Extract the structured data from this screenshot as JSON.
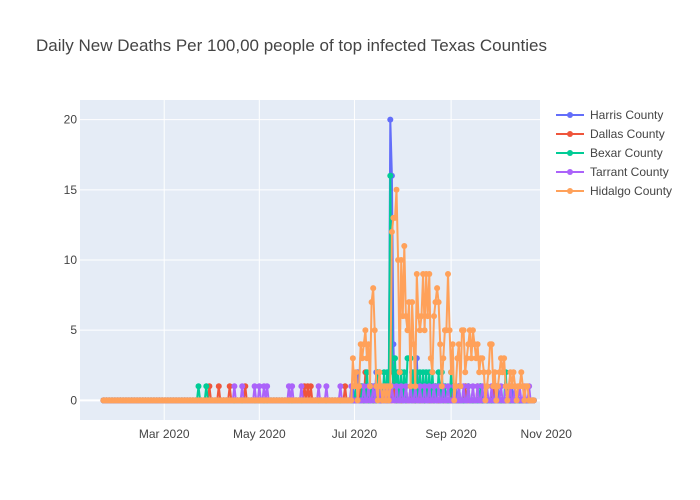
{
  "chart_data": {
    "type": "line",
    "title": "Daily New Deaths Per 100,00 people of top infected Texas Counties",
    "xlabel": "",
    "ylabel": "",
    "x_type": "date",
    "xlim": [
      "2020-01-07",
      "2020-10-28"
    ],
    "ylim": [
      -1.4,
      21.4
    ],
    "x_ticks": [
      {
        "value": "2020-03-01",
        "label": "Mar 2020"
      },
      {
        "value": "2020-05-01",
        "label": "May 2020"
      },
      {
        "value": "2020-07-01",
        "label": "Jul 2020"
      },
      {
        "value": "2020-09-01",
        "label": "Sep 2020"
      },
      {
        "value": "2020-11-01",
        "label": "Nov 2020"
      }
    ],
    "y_ticks": [
      0,
      5,
      10,
      15,
      20
    ],
    "grid": true,
    "legend_position": "top-right",
    "x_range": [
      "2020-01-22",
      "2020-10-24"
    ],
    "series": [
      {
        "name": "Harris County",
        "color": "#636efa",
        "points": [
          [
            "2020-06-30",
            1
          ],
          [
            "2020-07-03",
            2
          ],
          [
            "2020-07-10",
            1
          ],
          [
            "2020-07-15",
            2
          ],
          [
            "2020-07-21",
            1
          ],
          [
            "2020-07-24",
            20
          ],
          [
            "2020-07-25",
            16
          ],
          [
            "2020-07-26",
            4
          ],
          [
            "2020-07-28",
            2
          ],
          [
            "2020-07-30",
            1
          ],
          [
            "2020-08-03",
            1
          ],
          [
            "2020-08-07",
            2
          ],
          [
            "2020-08-10",
            3
          ],
          [
            "2020-08-13",
            1
          ],
          [
            "2020-08-17",
            1
          ],
          [
            "2020-08-21",
            1
          ],
          [
            "2020-08-27",
            1
          ],
          [
            "2020-09-04",
            1
          ],
          [
            "2020-09-12",
            1
          ],
          [
            "2020-09-20",
            1
          ],
          [
            "2020-10-01",
            1
          ],
          [
            "2020-10-10",
            1
          ]
        ]
      },
      {
        "name": "Dallas County",
        "color": "#ef553b",
        "points": [
          [
            "2020-03-30",
            1
          ],
          [
            "2020-04-05",
            1
          ],
          [
            "2020-04-12",
            1
          ],
          [
            "2020-04-22",
            1
          ],
          [
            "2020-05-30",
            1
          ],
          [
            "2020-06-01",
            1
          ],
          [
            "2020-06-03",
            1
          ],
          [
            "2020-06-25",
            1
          ],
          [
            "2020-07-05",
            1
          ],
          [
            "2020-07-08",
            2
          ],
          [
            "2020-07-12",
            1
          ],
          [
            "2020-07-17",
            2
          ],
          [
            "2020-07-20",
            1
          ],
          [
            "2020-07-26",
            2
          ],
          [
            "2020-08-02",
            1
          ],
          [
            "2020-08-06",
            1
          ],
          [
            "2020-08-11",
            1
          ],
          [
            "2020-08-16",
            1
          ],
          [
            "2020-08-22",
            1
          ],
          [
            "2020-08-26",
            1
          ],
          [
            "2020-09-02",
            1
          ],
          [
            "2020-09-10",
            1
          ],
          [
            "2020-09-18",
            1
          ],
          [
            "2020-09-28",
            1
          ]
        ]
      },
      {
        "name": "Bexar County",
        "color": "#00cc96",
        "points": [
          [
            "2020-03-23",
            1
          ],
          [
            "2020-03-28",
            1
          ],
          [
            "2020-07-02",
            1
          ],
          [
            "2020-07-06",
            1
          ],
          [
            "2020-07-09",
            2
          ],
          [
            "2020-07-12",
            1
          ],
          [
            "2020-07-14",
            1
          ],
          [
            "2020-07-16",
            2
          ],
          [
            "2020-07-18",
            1
          ],
          [
            "2020-07-20",
            2
          ],
          [
            "2020-07-22",
            2
          ],
          [
            "2020-07-24",
            16
          ],
          [
            "2020-07-25",
            3
          ],
          [
            "2020-07-26",
            1
          ],
          [
            "2020-07-27",
            3
          ],
          [
            "2020-07-29",
            2
          ],
          [
            "2020-07-31",
            2
          ],
          [
            "2020-08-02",
            2
          ],
          [
            "2020-08-04",
            3
          ],
          [
            "2020-08-05",
            3
          ],
          [
            "2020-08-06",
            3
          ],
          [
            "2020-08-08",
            2
          ],
          [
            "2020-08-10",
            2
          ],
          [
            "2020-08-12",
            2
          ],
          [
            "2020-08-14",
            2
          ],
          [
            "2020-08-16",
            2
          ],
          [
            "2020-08-18",
            2
          ],
          [
            "2020-08-20",
            2
          ],
          [
            "2020-08-22",
            1
          ],
          [
            "2020-08-24",
            2
          ],
          [
            "2020-08-26",
            2
          ],
          [
            "2020-08-28",
            1
          ],
          [
            "2020-09-01",
            2
          ],
          [
            "2020-09-06",
            1
          ],
          [
            "2020-09-12",
            1
          ],
          [
            "2020-09-20",
            1
          ],
          [
            "2020-09-30",
            1
          ],
          [
            "2020-10-06",
            2
          ]
        ]
      },
      {
        "name": "Tarrant County",
        "color": "#ab63fa",
        "points": [
          [
            "2020-04-15",
            1
          ],
          [
            "2020-04-20",
            1
          ],
          [
            "2020-04-28",
            1
          ],
          [
            "2020-05-01",
            1
          ],
          [
            "2020-05-04",
            1
          ],
          [
            "2020-05-06",
            1
          ],
          [
            "2020-05-20",
            1
          ],
          [
            "2020-05-22",
            1
          ],
          [
            "2020-05-28",
            1
          ],
          [
            "2020-06-08",
            1
          ],
          [
            "2020-06-13",
            1
          ],
          [
            "2020-06-22",
            1
          ],
          [
            "2020-06-29",
            1
          ],
          [
            "2020-07-07",
            1
          ],
          [
            "2020-07-10",
            1
          ],
          [
            "2020-07-13",
            1
          ],
          [
            "2020-07-15",
            1
          ],
          [
            "2020-07-18",
            1
          ],
          [
            "2020-07-21",
            1
          ],
          [
            "2020-07-23",
            1
          ],
          [
            "2020-07-25",
            1
          ],
          [
            "2020-07-28",
            1
          ],
          [
            "2020-07-31",
            1
          ],
          [
            "2020-08-03",
            1
          ],
          [
            "2020-08-06",
            1
          ],
          [
            "2020-08-09",
            1
          ],
          [
            "2020-08-12",
            1
          ],
          [
            "2020-08-15",
            1
          ],
          [
            "2020-08-18",
            1
          ],
          [
            "2020-08-21",
            1
          ],
          [
            "2020-08-24",
            1
          ],
          [
            "2020-08-27",
            1
          ],
          [
            "2020-08-30",
            1
          ],
          [
            "2020-09-03",
            1
          ],
          [
            "2020-09-06",
            1
          ],
          [
            "2020-09-09",
            1
          ],
          [
            "2020-09-12",
            1
          ],
          [
            "2020-09-15",
            1
          ],
          [
            "2020-09-18",
            1
          ],
          [
            "2020-09-21",
            1
          ],
          [
            "2020-09-24",
            1
          ],
          [
            "2020-09-27",
            1
          ],
          [
            "2020-09-30",
            1
          ],
          [
            "2020-10-03",
            1
          ],
          [
            "2020-10-06",
            1
          ],
          [
            "2020-10-09",
            1
          ],
          [
            "2020-10-12",
            1
          ],
          [
            "2020-10-15",
            1
          ],
          [
            "2020-10-18",
            1
          ],
          [
            "2020-10-21",
            1
          ]
        ]
      },
      {
        "name": "Hidalgo County",
        "color": "#ffa15a",
        "points": [
          [
            "2020-06-30",
            3
          ],
          [
            "2020-07-01",
            1
          ],
          [
            "2020-07-02",
            2
          ],
          [
            "2020-07-04",
            1
          ],
          [
            "2020-07-05",
            4
          ],
          [
            "2020-07-06",
            3
          ],
          [
            "2020-07-07",
            4
          ],
          [
            "2020-07-08",
            5
          ],
          [
            "2020-07-09",
            3
          ],
          [
            "2020-07-10",
            4
          ],
          [
            "2020-07-11",
            1
          ],
          [
            "2020-07-12",
            7
          ],
          [
            "2020-07-13",
            8
          ],
          [
            "2020-07-14",
            5
          ],
          [
            "2020-07-15",
            1
          ],
          [
            "2020-07-16",
            0
          ],
          [
            "2020-07-17",
            2
          ],
          [
            "2020-07-18",
            1
          ],
          [
            "2020-07-19",
            0
          ],
          [
            "2020-07-20",
            1
          ],
          [
            "2020-07-21",
            0
          ],
          [
            "2020-07-22",
            1
          ],
          [
            "2020-07-23",
            0
          ],
          [
            "2020-07-24",
            1
          ],
          [
            "2020-07-25",
            12
          ],
          [
            "2020-07-26",
            13
          ],
          [
            "2020-07-27",
            13
          ],
          [
            "2020-07-28",
            15
          ],
          [
            "2020-07-29",
            10
          ],
          [
            "2020-07-30",
            2
          ],
          [
            "2020-07-31",
            10
          ],
          [
            "2020-08-01",
            6
          ],
          [
            "2020-08-02",
            11
          ],
          [
            "2020-08-03",
            6
          ],
          [
            "2020-08-04",
            5
          ],
          [
            "2020-08-05",
            7
          ],
          [
            "2020-08-06",
            1
          ],
          [
            "2020-08-07",
            7
          ],
          [
            "2020-08-08",
            4
          ],
          [
            "2020-08-09",
            1
          ],
          [
            "2020-08-10",
            9
          ],
          [
            "2020-08-11",
            6
          ],
          [
            "2020-08-12",
            5
          ],
          [
            "2020-08-13",
            6
          ],
          [
            "2020-08-14",
            9
          ],
          [
            "2020-08-15",
            5
          ],
          [
            "2020-08-16",
            9
          ],
          [
            "2020-08-17",
            6
          ],
          [
            "2020-08-18",
            9
          ],
          [
            "2020-08-19",
            3
          ],
          [
            "2020-08-20",
            2
          ],
          [
            "2020-08-21",
            6
          ],
          [
            "2020-08-22",
            7
          ],
          [
            "2020-08-23",
            8
          ],
          [
            "2020-08-24",
            7
          ],
          [
            "2020-08-25",
            4
          ],
          [
            "2020-08-26",
            1
          ],
          [
            "2020-08-27",
            3
          ],
          [
            "2020-08-28",
            5
          ],
          [
            "2020-08-29",
            5
          ],
          [
            "2020-08-30",
            9
          ],
          [
            "2020-08-31",
            5
          ],
          [
            "2020-09-01",
            2
          ],
          [
            "2020-09-02",
            4
          ],
          [
            "2020-09-03",
            0
          ],
          [
            "2020-09-04",
            1
          ],
          [
            "2020-09-05",
            3
          ],
          [
            "2020-09-06",
            4
          ],
          [
            "2020-09-07",
            1
          ],
          [
            "2020-09-08",
            5
          ],
          [
            "2020-09-09",
            5
          ],
          [
            "2020-09-10",
            2
          ],
          [
            "2020-09-11",
            3
          ],
          [
            "2020-09-12",
            4
          ],
          [
            "2020-09-13",
            5
          ],
          [
            "2020-09-14",
            3
          ],
          [
            "2020-09-15",
            5
          ],
          [
            "2020-09-16",
            4
          ],
          [
            "2020-09-17",
            3
          ],
          [
            "2020-09-18",
            4
          ],
          [
            "2020-09-19",
            2
          ],
          [
            "2020-09-20",
            3
          ],
          [
            "2020-09-21",
            3
          ],
          [
            "2020-09-22",
            2
          ],
          [
            "2020-09-23",
            0
          ],
          [
            "2020-09-24",
            1
          ],
          [
            "2020-09-25",
            2
          ],
          [
            "2020-09-26",
            4
          ],
          [
            "2020-09-27",
            4
          ],
          [
            "2020-09-28",
            1
          ],
          [
            "2020-09-29",
            2
          ],
          [
            "2020-09-30",
            0
          ],
          [
            "2020-10-01",
            1
          ],
          [
            "2020-10-02",
            2
          ],
          [
            "2020-10-03",
            3
          ],
          [
            "2020-10-04",
            2
          ],
          [
            "2020-10-05",
            3
          ],
          [
            "2020-10-06",
            1
          ],
          [
            "2020-10-07",
            0
          ],
          [
            "2020-10-08",
            1
          ],
          [
            "2020-10-09",
            2
          ],
          [
            "2020-10-10",
            1
          ],
          [
            "2020-10-11",
            2
          ],
          [
            "2020-10-12",
            1
          ],
          [
            "2020-10-13",
            0
          ],
          [
            "2020-10-14",
            1
          ],
          [
            "2020-10-15",
            1
          ],
          [
            "2020-10-16",
            2
          ],
          [
            "2020-10-17",
            1
          ],
          [
            "2020-10-18",
            0
          ],
          [
            "2020-10-19",
            1
          ],
          [
            "2020-10-20",
            1
          ]
        ]
      }
    ]
  }
}
